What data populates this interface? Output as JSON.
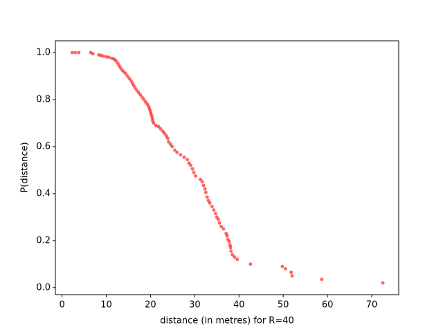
{
  "chart_data": {
    "type": "scatter",
    "xlabel": "distance (in metres) for R=40",
    "ylabel": "P(distance)",
    "color": "#ff0000",
    "x": [
      2.3,
      3.0,
      3.8,
      6.5,
      7.0,
      8.3,
      8.8,
      9.3,
      10.0,
      10.6,
      11.3,
      11.8,
      12.2,
      12.6,
      12.9,
      13.2,
      13.6,
      14.0,
      14.4,
      14.8,
      15.2,
      15.6,
      15.9,
      16.2,
      16.5,
      16.9,
      17.3,
      17.7,
      18.1,
      18.5,
      18.9,
      19.3,
      19.6,
      19.8,
      20.0,
      20.1,
      20.3,
      20.4,
      20.5,
      20.7,
      21.2,
      21.8,
      22.3,
      22.8,
      23.2,
      23.6,
      23.9,
      24.1,
      24.5,
      24.9,
      25.5,
      26.0,
      26.8,
      27.6,
      28.3,
      28.7,
      29.1,
      29.5,
      29.8,
      30.2,
      31.3,
      31.7,
      32.0,
      32.3,
      32.5,
      32.8,
      33.1,
      33.4,
      33.9,
      34.3,
      34.7,
      35.0,
      35.3,
      35.6,
      36.0,
      36.5,
      37.1,
      37.3,
      37.5,
      37.8,
      38.0,
      38.1,
      38.2,
      38.5,
      39.0,
      39.6,
      42.6,
      49.8,
      50.5,
      51.8,
      52.0,
      58.7,
      72.5
    ],
    "y": [
      1.0,
      1.0,
      1.0,
      1.0,
      0.995,
      0.99,
      0.988,
      0.985,
      0.982,
      0.98,
      0.975,
      0.972,
      0.965,
      0.955,
      0.945,
      0.935,
      0.925,
      0.918,
      0.91,
      0.9,
      0.89,
      0.88,
      0.87,
      0.86,
      0.85,
      0.84,
      0.83,
      0.82,
      0.81,
      0.8,
      0.79,
      0.78,
      0.77,
      0.76,
      0.75,
      0.74,
      0.73,
      0.72,
      0.71,
      0.7,
      0.69,
      0.685,
      0.675,
      0.665,
      0.655,
      0.645,
      0.635,
      0.62,
      0.61,
      0.6,
      0.585,
      0.575,
      0.565,
      0.555,
      0.545,
      0.53,
      0.52,
      0.505,
      0.49,
      0.475,
      0.46,
      0.45,
      0.435,
      0.42,
      0.405,
      0.385,
      0.37,
      0.36,
      0.345,
      0.33,
      0.315,
      0.3,
      0.29,
      0.275,
      0.26,
      0.25,
      0.23,
      0.22,
      0.205,
      0.195,
      0.18,
      0.17,
      0.155,
      0.14,
      0.13,
      0.12,
      0.1,
      0.09,
      0.08,
      0.065,
      0.05,
      0.035,
      0.02
    ],
    "xlim": [
      -1.5,
      76.1
    ],
    "ylim": [
      -0.03,
      1.05
    ],
    "xticks": [
      0,
      10,
      20,
      30,
      40,
      50,
      60,
      70
    ],
    "yticks": [
      {
        "value": 0,
        "label": "0.0"
      },
      {
        "value": 0.2,
        "label": "0.2"
      },
      {
        "value": 0.4,
        "label": "0.4"
      },
      {
        "value": 0.6,
        "label": "0.6"
      },
      {
        "value": 0.8,
        "label": "0.8"
      },
      {
        "value": 1,
        "label": "1.0"
      }
    ]
  }
}
